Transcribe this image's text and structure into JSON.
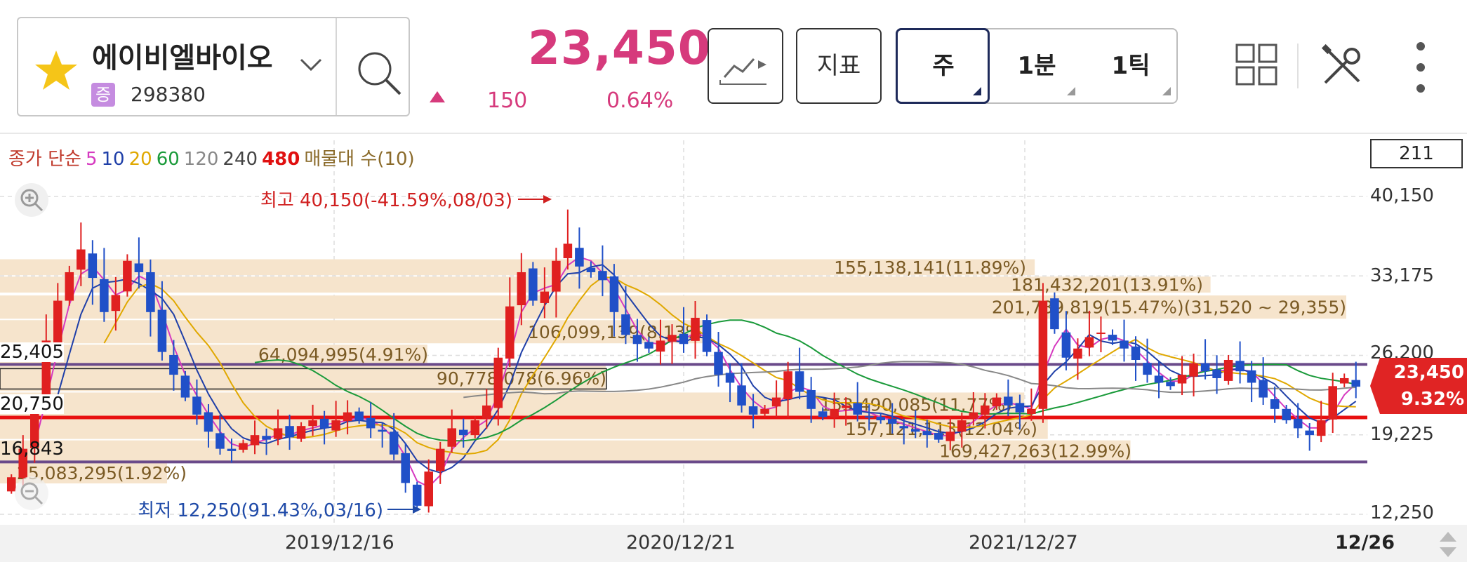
{
  "header": {
    "stock_name": "에이비엘바이오",
    "market_badge": "증",
    "stock_code": "298380",
    "price": "23,450",
    "change": "150",
    "change_pct": "0.64%",
    "indicator_label": "지표",
    "period_tabs": [
      {
        "label": "주",
        "active": true
      },
      {
        "label": "1분",
        "active": false
      },
      {
        "label": "1틱",
        "active": false
      }
    ],
    "icons": [
      "star-icon",
      "chevron-down-icon",
      "search-icon",
      "chart-type-icon",
      "layout-grid-icon",
      "tools-icon",
      "more-icon",
      "zoom-in-icon",
      "zoom-out-icon"
    ]
  },
  "legend": {
    "items": [
      {
        "text": "종가 단순",
        "color": "#c0392b"
      },
      {
        "text": "5",
        "color": "#d63ac0"
      },
      {
        "text": "10",
        "color": "#1f3fa8"
      },
      {
        "text": "20",
        "color": "#e0a800"
      },
      {
        "text": "60",
        "color": "#1a9a3a"
      },
      {
        "text": "120",
        "color": "#888888"
      },
      {
        "text": "240",
        "color": "#444444"
      },
      {
        "text": "480",
        "color": "#e01010"
      },
      {
        "text": "매물대 수(10)",
        "color": "#8a6a2a"
      }
    ],
    "bar_count": "211"
  },
  "colors": {
    "up": "#e02020",
    "down": "#2050c8",
    "volume_profile": "#f6e4cc",
    "support_line": "#6a4a8a",
    "red_line": "#e81010",
    "accent": "#d63a7c"
  },
  "chart_data": {
    "type": "candlestick",
    "ylim": [
      12250,
      40150
    ],
    "y_ticks": [
      "40,150",
      "33,175",
      "26,200",
      "19,225",
      "12,250"
    ],
    "x_ticks": [
      "2019/12/16",
      "2020/12/21",
      "2021/12/27",
      "12/26"
    ],
    "current": {
      "price": "23,450",
      "pct": "9.32%"
    },
    "high_annotation": "최고 40,150(-41.59%,08/03)",
    "low_annotation": "최저 12,250(91.43%,03/16)",
    "horizontal_lines": [
      {
        "label": "25,405",
        "value": 25405,
        "color": "#6a4a8a"
      },
      {
        "label": "20,750",
        "value": 20750,
        "color": "#e81010"
      },
      {
        "label": "16,843",
        "value": 16843,
        "color": "#6a4a8a"
      }
    ],
    "volume_profile": [
      {
        "label": "155,138,141(11.89%)",
        "lo": 33175,
        "hi": 34700,
        "pct": 11.89
      },
      {
        "label": "181,432,201(13.91%)",
        "lo": 31650,
        "hi": 33175,
        "pct": 13.91
      },
      {
        "label": "201,789,819(15.47%)(31,520 ~ 29,355)",
        "lo": 29355,
        "hi": 31520,
        "pct": 15.47
      },
      {
        "label": "106,099,139(8.13%)",
        "lo": 27200,
        "hi": 29355,
        "pct": 8.13
      },
      {
        "label": "64,094,995(4.91%)",
        "lo": 25405,
        "hi": 27200,
        "pct": 4.91
      },
      {
        "label": "90,778,078(6.96%)",
        "lo": 23000,
        "hi": 25405,
        "pct": 6.96
      },
      {
        "label": "153,490,085(11.77%)",
        "lo": 20750,
        "hi": 23000,
        "pct": 11.77
      },
      {
        "label": "157,121,113(12.04%)",
        "lo": 18800,
        "hi": 20750,
        "pct": 12.04
      },
      {
        "label": "169,427,263(12.99%)",
        "lo": 16843,
        "hi": 18800,
        "pct": 12.99
      },
      {
        "label": "25,083,295(1.92%)",
        "lo": 14900,
        "hi": 16843,
        "pct": 1.92
      }
    ],
    "closes": [
      15500,
      18000,
      21500,
      27500,
      31000,
      33500,
      35500,
      33000,
      30000,
      31500,
      34500,
      33500,
      30000,
      26500,
      24500,
      22500,
      21000,
      19500,
      18000,
      17800,
      18500,
      19200,
      18800,
      19800,
      19000,
      20000,
      20500,
      19800,
      20500,
      21200,
      20500,
      19800,
      19500,
      17500,
      15000,
      13000,
      16000,
      18000,
      19800,
      19200,
      20500,
      21800,
      26000,
      30500,
      33500,
      31000,
      31800,
      34500,
      36000,
      34000,
      33500,
      32800,
      30000,
      28000,
      27200,
      26800,
      27500,
      28000,
      27200,
      29500,
      26500,
      24500,
      23800,
      21800,
      21000,
      21500,
      22500,
      24800,
      23000,
      21500,
      20800,
      21500,
      21800,
      21000,
      20800,
      20500,
      20200,
      19800,
      19500,
      19200,
      18800,
      19500,
      20500,
      21200,
      21800,
      22500,
      21800,
      21200,
      21500,
      31000,
      28500,
      26000,
      26800,
      27800,
      28200,
      27500,
      26800,
      25800,
      24500,
      23800,
      23500,
      24500,
      25500,
      24800,
      24200,
      25800,
      24800,
      23800,
      22500,
      21500,
      20500,
      19800,
      19200,
      20500,
      23500,
      24200,
      23450
    ]
  }
}
